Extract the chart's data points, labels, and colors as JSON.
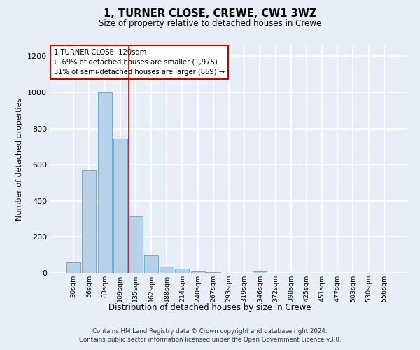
{
  "title": "1, TURNER CLOSE, CREWE, CW1 3WZ",
  "subtitle": "Size of property relative to detached houses in Crewe",
  "xlabel": "Distribution of detached houses by size in Crewe",
  "ylabel": "Number of detached properties",
  "bar_color": "#b8d0e8",
  "bar_edge_color": "#6aaad4",
  "background_color": "#e8eef8",
  "grid_color": "#ffffff",
  "categories": [
    "30sqm",
    "56sqm",
    "83sqm",
    "109sqm",
    "135sqm",
    "162sqm",
    "188sqm",
    "214sqm",
    "240sqm",
    "267sqm",
    "293sqm",
    "319sqm",
    "346sqm",
    "372sqm",
    "398sqm",
    "425sqm",
    "451sqm",
    "477sqm",
    "503sqm",
    "530sqm",
    "556sqm"
  ],
  "values": [
    60,
    570,
    1000,
    745,
    315,
    95,
    35,
    22,
    12,
    5,
    0,
    0,
    12,
    0,
    0,
    0,
    0,
    0,
    0,
    0,
    0
  ],
  "ylim": [
    0,
    1260
  ],
  "yticks": [
    0,
    200,
    400,
    600,
    800,
    1000,
    1200
  ],
  "property_line_x": 3.57,
  "annotation_text": "1 TURNER CLOSE: 120sqm\n← 69% of detached houses are smaller (1,975)\n31% of semi-detached houses are larger (869) →",
  "annotation_box_color": "#ffffff",
  "annotation_box_edge_color": "#cc0000",
  "line_color": "#cc0000",
  "footnote": "Contains HM Land Registry data © Crown copyright and database right 2024.\nContains public sector information licensed under the Open Government Licence v3.0."
}
